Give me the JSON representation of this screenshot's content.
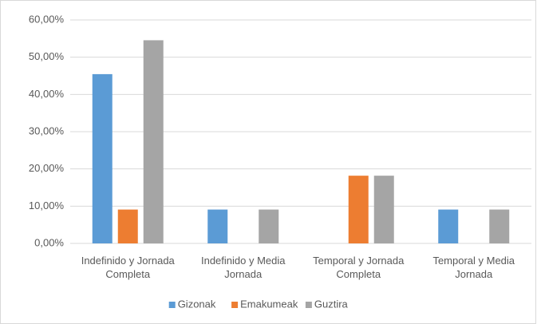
{
  "chart_data": {
    "type": "bar",
    "categories": [
      "Indefinido y Jornada Completa",
      "Indefinido y Media Jornada",
      "Temporal y Jornada Completa",
      "Temporal y Media Jornada"
    ],
    "series": [
      {
        "name": "Gizonak",
        "color": "#5b9bd5",
        "values": [
          45.45,
          9.09,
          0,
          9.09
        ]
      },
      {
        "name": "Emakumeak",
        "color": "#ed7d31",
        "values": [
          9.09,
          0,
          18.18,
          0
        ]
      },
      {
        "name": "Guztira",
        "color": "#a5a5a5",
        "values": [
          54.55,
          9.09,
          18.18,
          9.09
        ]
      }
    ],
    "ylim": [
      0,
      60
    ],
    "yticks": [
      {
        "value": 0,
        "label": "0,00%"
      },
      {
        "value": 10,
        "label": "10,00%"
      },
      {
        "value": 20,
        "label": "20,00%"
      },
      {
        "value": 30,
        "label": "30,00%"
      },
      {
        "value": 40,
        "label": "40,00%"
      },
      {
        "value": 50,
        "label": "50,00%"
      },
      {
        "value": 60,
        "label": "60,00%"
      }
    ],
    "grid": true,
    "legend": "bottom"
  }
}
